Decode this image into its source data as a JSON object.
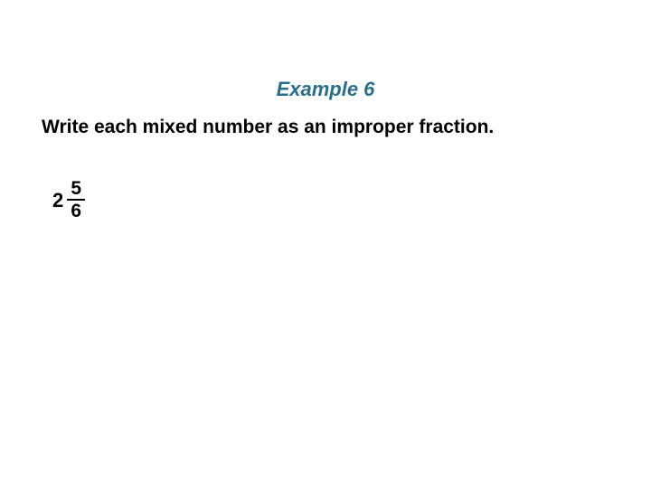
{
  "title": {
    "text": "Example 6",
    "color": "#2a6f8a",
    "font_size": 22,
    "bold": true,
    "italic": true
  },
  "instruction": {
    "text": "Write each mixed number as an improper fraction.",
    "font_size": 21,
    "bold": true,
    "color": "#000000"
  },
  "mixed_number": {
    "whole": "2",
    "numerator": "5",
    "denominator": "6",
    "font_size": 21,
    "bold": true,
    "color": "#000000",
    "vinculum_color": "#000000"
  },
  "background_color": "#ffffff"
}
